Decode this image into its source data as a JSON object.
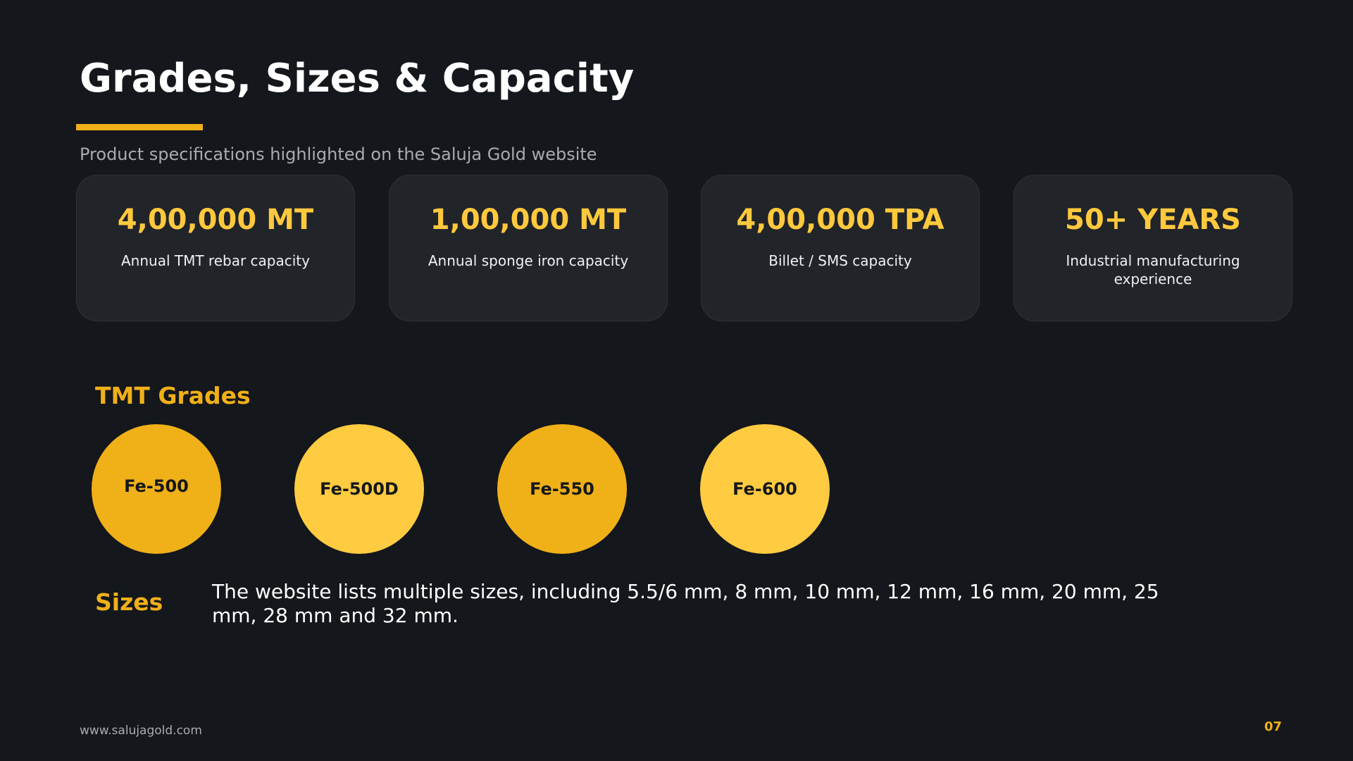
{
  "slide": {
    "title": "Grades, Sizes & Capacity",
    "subtitle": "Product specifications highlighted on the Saluja Gold website",
    "accent_color": "#f0b018",
    "highlight_color": "#ffc93d",
    "background_color": "#14171b"
  },
  "stats": [
    {
      "value": "4,00,000 MT",
      "label": "Annual TMT rebar capacity"
    },
    {
      "value": "1,00,000 MT",
      "label": "Annual sponge iron capacity"
    },
    {
      "value": "4,00,000 TPA",
      "label": "Billet / SMS capacity"
    },
    {
      "value": "50+ YEARS",
      "label": "Industrial manufacturing experience"
    }
  ],
  "grades": {
    "heading": "TMT Grades",
    "items": [
      {
        "label": "Fe-500",
        "color": "#f0b018"
      },
      {
        "label": "Fe-500D",
        "color": "#ffcb40"
      },
      {
        "label": "Fe-550",
        "color": "#f0b018"
      },
      {
        "label": "Fe-600",
        "color": "#ffcb40"
      }
    ]
  },
  "sizes": {
    "heading": "Sizes",
    "text": "The website lists multiple sizes, including 5.5/6 mm, 8 mm, 10 mm, 12 mm, 16 mm, 20 mm, 25 mm, 28 mm and 32 mm."
  },
  "footer": {
    "url": "www.salujagold.com",
    "page_number": "07"
  }
}
